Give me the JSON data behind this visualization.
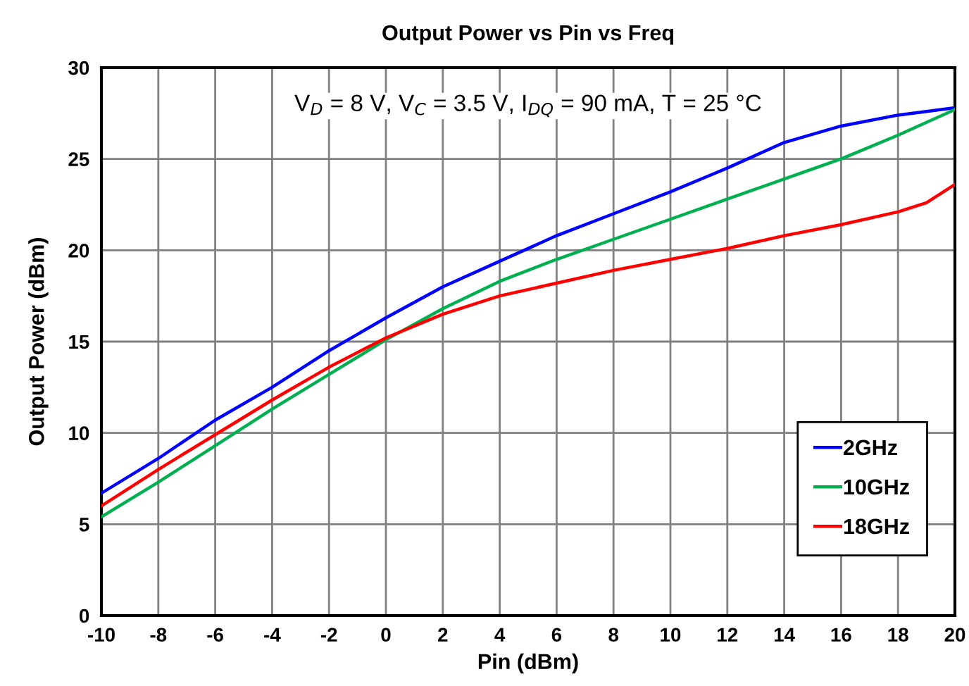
{
  "chart_data": {
    "type": "line",
    "title": "Output Power vs Pin vs Freq",
    "xlabel": "Pin (dBm)",
    "ylabel": "Output Power (dBm)",
    "annotations": [
      "V$_{D}$ = 8 V, V$_{C}$ = 3.5 V, I$_{DQ}$ = 90 mA, T = 25 °C"
    ],
    "x": [
      -10,
      -8,
      -6,
      -4,
      -2,
      0,
      2,
      4,
      6,
      8,
      10,
      12,
      14,
      16,
      18,
      19,
      20
    ],
    "series": [
      {
        "name": "2GHz",
        "color": "#0000ff",
        "values": [
          6.7,
          8.6,
          10.7,
          12.5,
          14.5,
          16.3,
          18.0,
          19.4,
          20.8,
          22.0,
          23.2,
          24.5,
          25.9,
          26.8,
          27.4,
          27.6,
          27.8
        ]
      },
      {
        "name": "10GHz",
        "color": "#00b050",
        "values": [
          5.4,
          7.3,
          9.3,
          11.3,
          13.2,
          15.1,
          16.8,
          18.3,
          19.5,
          20.6,
          21.7,
          22.8,
          23.9,
          25.0,
          26.3,
          27.0,
          27.7
        ]
      },
      {
        "name": "18GHz",
        "color": "#ff0000",
        "values": [
          6.0,
          8.0,
          9.9,
          11.8,
          13.6,
          15.2,
          16.5,
          17.5,
          18.2,
          18.9,
          19.5,
          20.1,
          20.8,
          21.4,
          22.1,
          22.6,
          23.6
        ]
      }
    ],
    "xlim": [
      -10,
      20
    ],
    "xticks": [
      -10,
      -8,
      -6,
      -4,
      -2,
      0,
      2,
      4,
      6,
      8,
      10,
      12,
      14,
      16,
      18,
      20
    ],
    "ylim": [
      0,
      30
    ],
    "yticks": [
      0,
      5,
      10,
      15,
      20,
      25,
      30
    ],
    "grid": true,
    "legend": "bottom right",
    "marker": "none",
    "line_style": "solid"
  }
}
